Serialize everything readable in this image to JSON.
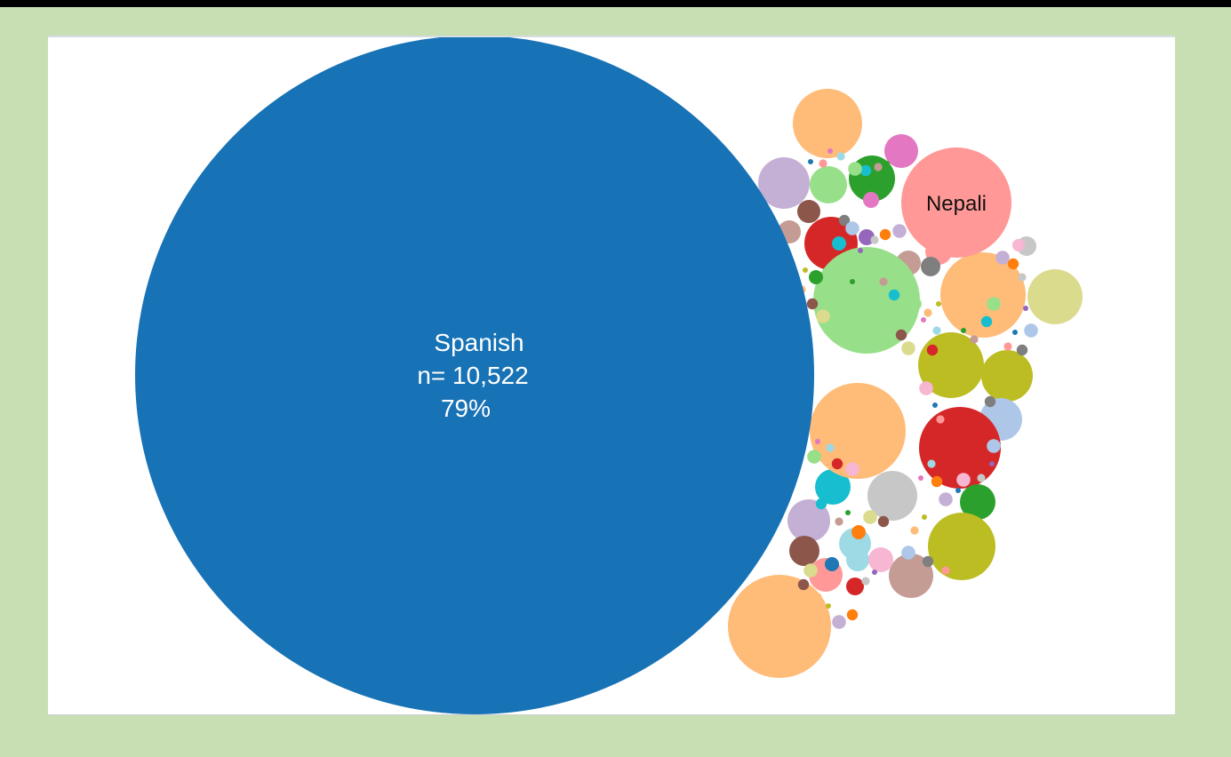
{
  "chart_data": {
    "type": "bubble",
    "labeled_bubbles": [
      {
        "name": "Spanish",
        "n_text": "n= 10,522",
        "pct_text": "79%",
        "color": "#1772b6"
      },
      {
        "name": "Nepali",
        "color": "#ff9896"
      }
    ],
    "palette": [
      "#1f77b4",
      "#aec7e8",
      "#ff7f0e",
      "#ffbb78",
      "#2ca02c",
      "#98df8a",
      "#d62728",
      "#ff9896",
      "#9467bd",
      "#c5b0d5",
      "#8c564b",
      "#c49c94",
      "#e377c2",
      "#f7b6d2",
      "#7f7f7f",
      "#c7c7c7",
      "#bcbd22",
      "#dbdb8d",
      "#17becf",
      "#9edae5"
    ],
    "unlabeled_bubble_colors": [
      "#ffbb78",
      "#e377c2",
      "#c5b0d5",
      "#98df8a",
      "#2ca02c",
      "#d62728",
      "#ffbb78",
      "#dbdb8d",
      "#bcbd22",
      "#bcbd22",
      "#aec7e8",
      "#d62728",
      "#c7c7c7",
      "#2ca02c",
      "#bcbd22",
      "#c49c94",
      "#9edae5",
      "#ffbb78",
      "#8c564b",
      "#ff9896",
      "#c49c94",
      "#7f7f7f",
      "#98df8a",
      "#ff7f0e",
      "#c5b0d5",
      "#9edae5",
      "#ff9896",
      "#8c564b",
      "#d62728",
      "#17becf",
      "#f7b6d2",
      "#c7c7c7",
      "#7f7f7f",
      "#9467bd",
      "#e377c2",
      "#1f77b4",
      "#ff7f0e",
      "#2ca02c",
      "#17becf",
      "#ffbb78",
      "#aec7e8",
      "#bcbd22",
      "#c49c94",
      "#f7b6d2"
    ]
  }
}
